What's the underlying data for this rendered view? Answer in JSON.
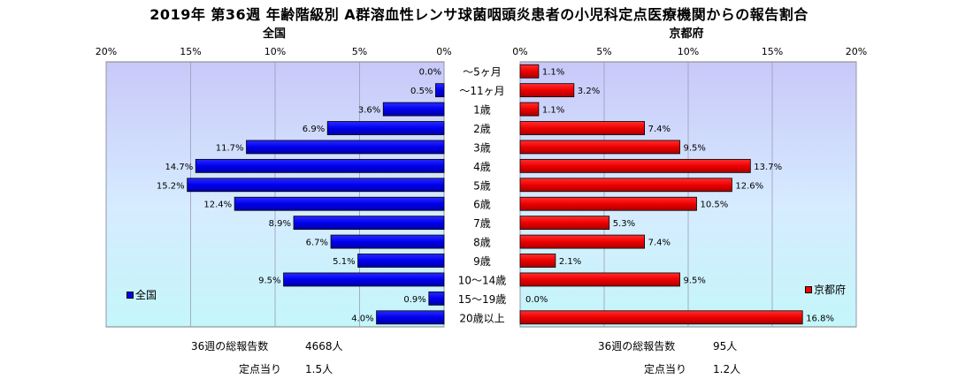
{
  "chart_title": "2019年 第36週 年齢階級別 A群溶血性レンサ球菌咽頭炎患者の小児科定点医療機関からの報告割合",
  "chart_data": {
    "type": "bar",
    "orientation": "horizontal",
    "categories": [
      "～5ヶ月",
      "～11ヶ月",
      "1歳",
      "2歳",
      "3歳",
      "4歳",
      "5歳",
      "6歳",
      "7歳",
      "8歳",
      "9歳",
      "10～14歳",
      "15～19歳",
      "20歳以上"
    ],
    "panels": [
      {
        "title": "全国",
        "series": [
          {
            "name": "全国",
            "values": [
              0.0,
              0.5,
              3.6,
              6.9,
              11.7,
              14.7,
              15.2,
              12.4,
              8.9,
              6.7,
              5.1,
              9.5,
              0.9,
              4.0
            ],
            "color": "#0000ff"
          }
        ],
        "xlim": [
          0,
          20
        ],
        "direction": "right-to-left",
        "ticks": [
          "20%",
          "15%",
          "10%",
          "5%",
          "0%"
        ],
        "data_labels": [
          "0.0%",
          "0.5%",
          "3.6%",
          "6.9%",
          "11.7%",
          "14.7%",
          "15.2%",
          "12.4%",
          "8.9%",
          "6.7%",
          "5.1%",
          "9.5%",
          "0.9%",
          "4.0%"
        ],
        "legend_position": "bottom-left",
        "background": "gradient-lavender-cyan"
      },
      {
        "title": "京都府",
        "series": [
          {
            "name": "京都府",
            "values": [
              1.1,
              3.2,
              1.1,
              7.4,
              9.5,
              13.7,
              12.6,
              10.5,
              5.3,
              7.4,
              2.1,
              9.5,
              0.0,
              16.8
            ],
            "color": "#ff0000"
          }
        ],
        "xlim": [
          0,
          20
        ],
        "direction": "left-to-right",
        "ticks": [
          "0%",
          "5%",
          "10%",
          "15%",
          "20%"
        ],
        "data_labels": [
          "1.1%",
          "3.2%",
          "1.1%",
          "7.4%",
          "9.5%",
          "13.7%",
          "12.6%",
          "10.5%",
          "5.3%",
          "7.4%",
          "2.1%",
          "9.5%",
          "0.0%",
          "16.8%"
        ],
        "legend_position": "bottom-right",
        "background": "gradient-lavender-cyan"
      }
    ],
    "grid": true,
    "gridlines": "vertical"
  },
  "footer": {
    "left": {
      "total_label": "36週の総報告数",
      "total_value": "4668人",
      "per_label": "定点当り",
      "per_value": "1.5人"
    },
    "right": {
      "total_label": "36週の総報告数",
      "total_value": "95人",
      "per_label": "定点当り",
      "per_value": "1.2人"
    }
  }
}
